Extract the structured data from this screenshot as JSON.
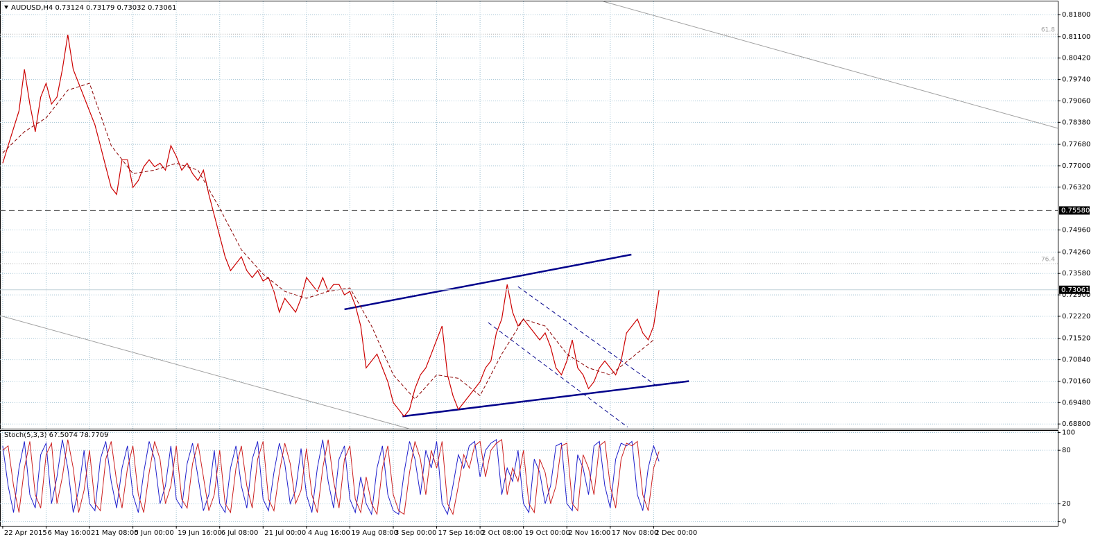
{
  "chart_data": [
    {
      "type": "line",
      "title": "AUDUSD,H4  0.73124 0.73179 0.73032 0.73061",
      "color": "#cc0000",
      "xlim": [
        -0.5,
        194.5
      ],
      "xticks": [
        {
          "value": 0,
          "label": "22 Apr 2015"
        },
        {
          "value": 8,
          "label": "6 May 16:00"
        },
        {
          "value": 16,
          "label": "21 May 08:00"
        },
        {
          "value": 24,
          "label": "5 Jun 00:00"
        },
        {
          "value": 32,
          "label": "19 Jun 16:00"
        },
        {
          "value": 40,
          "label": "6 Jul 08:00"
        },
        {
          "value": 48,
          "label": "21 Jul 00:00"
        },
        {
          "value": 56,
          "label": "4 Aug 16:00"
        },
        {
          "value": 64,
          "label": "19 Aug 08:00"
        },
        {
          "value": 72,
          "label": "3 Sep 00:00"
        },
        {
          "value": 80,
          "label": "17 Sep 16:00"
        },
        {
          "value": 88,
          "label": "2 Oct 08:00"
        },
        {
          "value": 96,
          "label": "19 Oct 00:00"
        },
        {
          "value": 104,
          "label": "2 Nov 16:00"
        },
        {
          "value": 112,
          "label": "17 Nov 08:00"
        },
        {
          "value": 120,
          "label": "2 Dec 00:00"
        }
      ],
      "ylim": [
        0.6865,
        0.8222
      ],
      "yticks": [
        {
          "value": 0.818,
          "label": "0.81800"
        },
        {
          "value": 0.811,
          "label": "0.81100"
        },
        {
          "value": 0.8042,
          "label": "0.80420"
        },
        {
          "value": 0.7974,
          "label": "0.79740"
        },
        {
          "value": 0.7906,
          "label": "0.79060"
        },
        {
          "value": 0.7838,
          "label": "0.78380"
        },
        {
          "value": 0.7768,
          "label": "0.77680"
        },
        {
          "value": 0.77,
          "label": "0.77000"
        },
        {
          "value": 0.7632,
          "label": "0.76320"
        },
        {
          "value": 0.7496,
          "label": "0.74960"
        },
        {
          "value": 0.7426,
          "label": "0.74260"
        },
        {
          "value": 0.7358,
          "label": "0.73580"
        },
        {
          "value": 0.729,
          "label": "0.72900"
        },
        {
          "value": 0.7222,
          "label": "0.72220"
        },
        {
          "value": 0.7152,
          "label": "0.71520"
        },
        {
          "value": 0.7084,
          "label": "0.70840"
        },
        {
          "value": 0.7016,
          "label": "0.70160"
        },
        {
          "value": 0.6948,
          "label": "0.69480"
        },
        {
          "value": 0.688,
          "label": "0.68800"
        }
      ],
      "grid": true,
      "values": [
        0.7708,
        0.7764,
        0.7819,
        0.7874,
        0.8006,
        0.7896,
        0.7808,
        0.7918,
        0.7962,
        0.7896,
        0.7918,
        0.8006,
        0.8116,
        0.8006,
        0.7962,
        0.7918,
        0.7874,
        0.783,
        0.7764,
        0.7697,
        0.7631,
        0.7609,
        0.7719,
        0.7719,
        0.7631,
        0.7653,
        0.7697,
        0.7719,
        0.7697,
        0.7708,
        0.7686,
        0.7764,
        0.773,
        0.7686,
        0.7708,
        0.7675,
        0.7653,
        0.7686,
        0.7609,
        0.7543,
        0.7477,
        0.7411,
        0.7367,
        0.7389,
        0.7411,
        0.7367,
        0.7345,
        0.7367,
        0.7334,
        0.7345,
        0.7301,
        0.7235,
        0.7279,
        0.7257,
        0.7235,
        0.7279,
        0.7345,
        0.7323,
        0.7301,
        0.7345,
        0.7301,
        0.7323,
        0.7323,
        0.729,
        0.7301,
        0.7257,
        0.7191,
        0.7058,
        0.708,
        0.7102,
        0.7058,
        0.7014,
        0.6948,
        0.6926,
        0.6904,
        0.6926,
        0.6992,
        0.7036,
        0.7058,
        0.7102,
        0.7147,
        0.7191,
        0.7036,
        0.697,
        0.6926,
        0.6948,
        0.697,
        0.6992,
        0.7014,
        0.7058,
        0.708,
        0.7169,
        0.7213,
        0.7323,
        0.7235,
        0.7191,
        0.7213,
        0.7191,
        0.7169,
        0.7147,
        0.7169,
        0.7125,
        0.7058,
        0.7036,
        0.708,
        0.7147,
        0.7058,
        0.7036,
        0.6992,
        0.7014,
        0.7058,
        0.708,
        0.7058,
        0.7036,
        0.708,
        0.7169,
        0.7191,
        0.7213,
        0.7169,
        0.7147,
        0.7191,
        0.73061
      ],
      "moving_average": {
        "color": "#8b0000",
        "x": [
          0,
          4,
          8,
          12,
          16,
          20,
          24,
          28,
          32,
          36,
          40,
          44,
          48,
          52,
          56,
          60,
          64,
          68,
          72,
          76,
          80,
          84,
          88,
          92,
          96,
          100,
          104,
          108,
          112,
          116,
          120
        ],
        "values": [
          0.7741,
          0.7808,
          0.7852,
          0.794,
          0.7962,
          0.7764,
          0.7675,
          0.7686,
          0.7708,
          0.7686,
          0.7565,
          0.7433,
          0.7356,
          0.7301,
          0.7279,
          0.7301,
          0.7312,
          0.7191,
          0.7036,
          0.6959,
          0.7036,
          0.7025,
          0.697,
          0.7102,
          0.7213,
          0.7191,
          0.7102,
          0.7058,
          0.7036,
          0.7091,
          0.7147
        ]
      },
      "trendlines": [
        {
          "color": "#00008b",
          "style": "bold",
          "x": [
            63,
            115.9
          ],
          "y": [
            0.7244,
            0.7418
          ]
        },
        {
          "color": "#00008b",
          "style": "bold",
          "x": [
            73.7,
            126.5
          ],
          "y": [
            0.6904,
            0.7016
          ]
        },
        {
          "color": "#00008b",
          "style": "dashed",
          "x": [
            95,
            120.7
          ],
          "y": [
            0.7316,
            0.6999
          ]
        },
        {
          "color": "#00008b",
          "style": "dashed",
          "x": [
            89.5,
            115.2
          ],
          "y": [
            0.7202,
            0.687
          ]
        },
        {
          "color": "#a0a0a0",
          "style": "thin",
          "x": [
            110.7,
            194.5
          ],
          "y": [
            0.8222,
            0.7819
          ]
        },
        {
          "color": "#a0a0a0",
          "style": "thin",
          "x": [
            -0.5,
            74.9
          ],
          "y": [
            0.7224,
            0.6865
          ]
        }
      ],
      "levels": [
        {
          "value": 0.7558,
          "label": "0.75580"
        }
      ],
      "fib_levels": [
        {
          "value": 0.8118,
          "label": "61.8"
        },
        {
          "value": 0.7389,
          "label": "76.4"
        }
      ],
      "current_price": {
        "value": 0.73061,
        "label": "0.73061"
      }
    },
    {
      "type": "line",
      "title": "Stoch(5,3,3) 67.5074 78.7709",
      "ylim": [
        -5,
        102
      ],
      "yticks": [
        0,
        20,
        80,
        100
      ],
      "grid": true,
      "main": {
        "color": "#1f1fcc",
        "values": [
          85,
          40,
          10,
          60,
          90,
          30,
          15,
          75,
          88,
          20,
          50,
          92,
          60,
          10,
          35,
          80,
          20,
          12,
          70,
          90,
          45,
          15,
          60,
          85,
          30,
          10,
          55,
          90,
          70,
          20,
          40,
          85,
          25,
          15,
          65,
          88,
          50,
          12,
          30,
          80,
          20,
          10,
          60,
          85,
          40,
          15,
          70,
          90,
          25,
          12,
          55,
          88,
          65,
          20,
          35,
          82,
          30,
          10,
          60,
          92,
          45,
          15,
          70,
          85,
          25,
          10,
          50,
          20,
          8,
          60,
          85,
          30,
          12,
          8,
          55,
          90,
          70,
          30,
          80,
          60,
          90,
          20,
          8,
          40,
          75,
          60,
          85,
          90,
          50,
          80,
          88,
          92,
          30,
          60,
          45,
          80,
          20,
          10,
          70,
          55,
          20,
          40,
          85,
          88,
          20,
          12,
          75,
          60,
          30,
          85,
          90,
          40,
          15,
          70,
          88,
          85,
          90,
          30,
          12,
          60,
          85,
          67.5074
        ]
      },
      "signal": {
        "color": "#cc1f1f",
        "values": [
          80,
          85,
          40,
          10,
          60,
          90,
          30,
          15,
          75,
          88,
          20,
          50,
          92,
          60,
          10,
          35,
          80,
          20,
          12,
          70,
          90,
          45,
          15,
          60,
          85,
          30,
          10,
          55,
          90,
          70,
          20,
          40,
          85,
          25,
          15,
          65,
          88,
          50,
          12,
          30,
          80,
          20,
          10,
          60,
          85,
          40,
          15,
          70,
          90,
          25,
          12,
          55,
          88,
          65,
          20,
          35,
          82,
          30,
          10,
          60,
          92,
          45,
          15,
          70,
          85,
          25,
          10,
          50,
          20,
          8,
          60,
          85,
          30,
          12,
          8,
          55,
          90,
          70,
          30,
          80,
          60,
          90,
          20,
          8,
          40,
          75,
          60,
          85,
          90,
          50,
          80,
          88,
          92,
          30,
          60,
          45,
          80,
          20,
          10,
          70,
          55,
          20,
          40,
          85,
          88,
          20,
          12,
          75,
          60,
          30,
          85,
          90,
          40,
          15,
          70,
          88,
          85,
          90,
          30,
          12,
          60,
          78.7709
        ]
      }
    }
  ]
}
